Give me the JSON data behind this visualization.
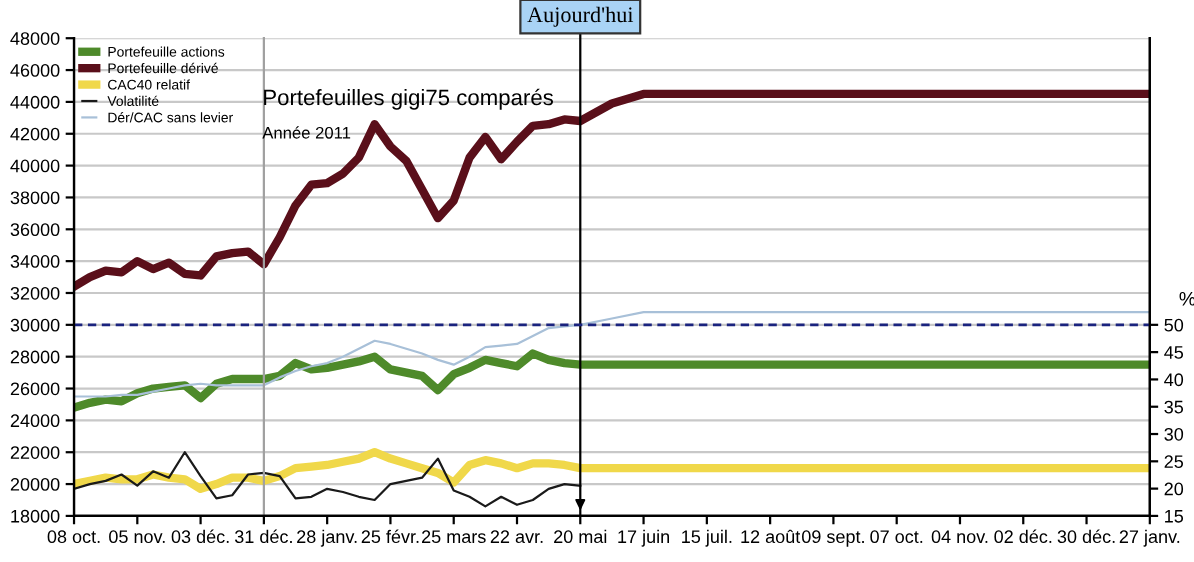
{
  "chart_data": {
    "type": "line",
    "title": "Portefeuilles gigi75 comparés",
    "subtitle": "Année 2011",
    "y2label": "%",
    "x": [
      "2010-10-08",
      "2010-10-15",
      "2010-10-22",
      "2010-10-29",
      "2010-11-05",
      "2010-11-12",
      "2010-11-19",
      "2010-11-26",
      "2010-12-03",
      "2010-12-10",
      "2010-12-17",
      "2010-12-24",
      "2010-12-31",
      "2011-01-07",
      "2011-01-14",
      "2011-01-21",
      "2011-01-28",
      "2011-02-04",
      "2011-02-11",
      "2011-02-18",
      "2011-02-25",
      "2011-03-04",
      "2011-03-11",
      "2011-03-18",
      "2011-03-25",
      "2011-04-01",
      "2011-04-08",
      "2011-04-15",
      "2011-04-22",
      "2011-04-29",
      "2011-05-06",
      "2011-05-13",
      "2011-05-20",
      "2011-06-03",
      "2011-06-17",
      "2012-01-27"
    ],
    "series": [
      {
        "name": "Portefeuille actions",
        "color": "#4e8a2a",
        "values": [
          24800,
          25100,
          25300,
          25200,
          25700,
          26000,
          26100,
          26200,
          25400,
          26300,
          26600,
          26600,
          26600,
          26800,
          27600,
          27200,
          27300,
          27500,
          27700,
          28000,
          27200,
          27000,
          26800,
          25900,
          26900,
          27300,
          27800,
          27600,
          27400,
          28200,
          27800,
          27600,
          27500,
          27500,
          27500,
          27500
        ]
      },
      {
        "name": "Portefeuille dérivé",
        "color": "#5a0f1a",
        "values": [
          32400,
          33000,
          33400,
          33300,
          34000,
          33500,
          33900,
          33200,
          33100,
          34300,
          34500,
          34600,
          33800,
          35500,
          37500,
          38800,
          38900,
          39500,
          40500,
          42600,
          41200,
          40300,
          38500,
          36700,
          37800,
          40500,
          41800,
          40400,
          41500,
          42500,
          42600,
          42900,
          42800,
          43900,
          44500,
          44500
        ]
      },
      {
        "name": "CAC40 relatif",
        "color": "#f0d84a",
        "values": [
          20000,
          20200,
          20400,
          20300,
          20300,
          20600,
          20400,
          20300,
          19700,
          20000,
          20400,
          20400,
          20200,
          20500,
          21000,
          21100,
          21200,
          21400,
          21600,
          22000,
          21600,
          21300,
          21000,
          20700,
          20100,
          21200,
          21500,
          21300,
          21000,
          21300,
          21300,
          21200,
          21000,
          21000,
          21000,
          21000
        ]
      },
      {
        "name": "Volatilité",
        "color": "#1a1a1a",
        "values": [
          19700,
          20000,
          20200,
          20600,
          19900,
          20800,
          20400,
          22000,
          20500,
          19100,
          19300,
          20600,
          20700,
          20500,
          19100,
          19200,
          19700,
          19500,
          19200,
          19000,
          20000,
          20200,
          20400,
          21600,
          19600,
          19200,
          18600,
          19200,
          18700,
          19000,
          19700,
          20000,
          19900,
          null,
          null,
          null
        ]
      },
      {
        "name": "Dér/CAC sans levier",
        "color": "#a8c0d8",
        "values": [
          25500,
          25500,
          25500,
          25600,
          25600,
          25800,
          26000,
          26200,
          26300,
          26200,
          26200,
          26200,
          26200,
          26700,
          27100,
          27400,
          27600,
          28000,
          28500,
          29000,
          28800,
          28500,
          28200,
          27800,
          27500,
          28000,
          28600,
          28700,
          28800,
          29300,
          29800,
          29900,
          30000,
          30400,
          30800,
          30800
        ]
      }
    ],
    "xlim": [
      "2010-10-08",
      "2012-01-27"
    ],
    "xticks": [
      {
        "value": "2010-10-08",
        "label": "08 oct."
      },
      {
        "value": "2010-11-05",
        "label": "05 nov."
      },
      {
        "value": "2010-12-03",
        "label": "03 déc."
      },
      {
        "value": "2010-12-31",
        "label": "31 déc."
      },
      {
        "value": "2011-01-28",
        "label": "28 janv."
      },
      {
        "value": "2011-02-25",
        "label": "25 févr."
      },
      {
        "value": "2011-03-25",
        "label": "25 mars"
      },
      {
        "value": "2011-04-22",
        "label": "22 avr."
      },
      {
        "value": "2011-05-20",
        "label": "20 mai"
      },
      {
        "value": "2011-06-17",
        "label": "17 juin"
      },
      {
        "value": "2011-07-15",
        "label": "15 juil."
      },
      {
        "value": "2011-08-12",
        "label": "12 août"
      },
      {
        "value": "2011-09-09",
        "label": "09 sept."
      },
      {
        "value": "2011-10-07",
        "label": "07 oct."
      },
      {
        "value": "2011-11-04",
        "label": "04 nov."
      },
      {
        "value": "2011-12-02",
        "label": "02 déc."
      },
      {
        "value": "2011-12-30",
        "label": "30 déc."
      },
      {
        "value": "2012-01-27",
        "label": "27 janv."
      }
    ],
    "ylim": [
      18000,
      48000
    ],
    "yticks": [
      18000,
      20000,
      22000,
      24000,
      26000,
      28000,
      30000,
      32000,
      34000,
      36000,
      38000,
      40000,
      42000,
      44000,
      46000,
      48000
    ],
    "y2lim": [
      15,
      102.5
    ],
    "y2ticks": [
      15,
      20,
      25,
      30,
      35,
      40,
      45,
      50
    ],
    "ref_lines": [
      {
        "axis": "y2",
        "value": 50,
        "color": "#1a237e",
        "line_style": "dashed"
      },
      {
        "axis": "x",
        "value": "2010-12-31",
        "color": "#a0a0a0"
      },
      {
        "axis": "x",
        "value": "2011-05-20",
        "label": "Aujourd'hui",
        "color": "#000000"
      }
    ],
    "grid": "y",
    "legend": "top left"
  }
}
